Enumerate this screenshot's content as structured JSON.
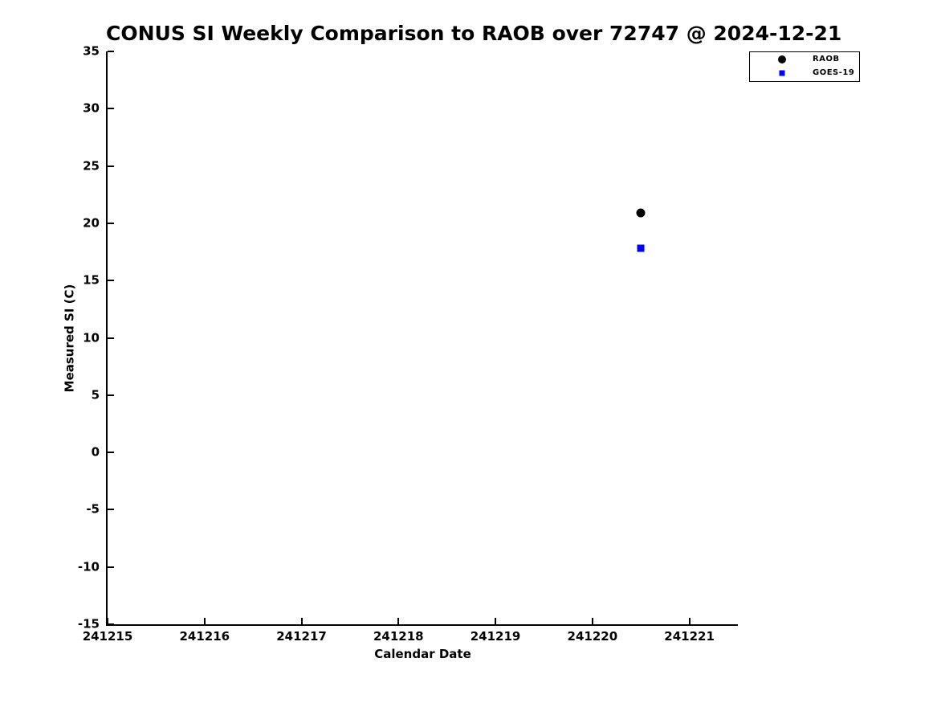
{
  "chart_data": {
    "type": "scatter",
    "title": "CONUS SI Weekly Comparison to RAOB over 72747 @ 2024-12-21",
    "xlabel": "Calendar Date",
    "ylabel": "Measured SI (C)",
    "xlim": [
      241215,
      241221.5
    ],
    "ylim": [
      -15,
      35
    ],
    "x_ticks": [
      241215,
      241216,
      241217,
      241218,
      241219,
      241220,
      241221
    ],
    "y_ticks": [
      35,
      30,
      25,
      20,
      15,
      10,
      5,
      0,
      -5,
      -10,
      -15
    ],
    "grid": false,
    "background_color": "#ffffff",
    "axis_color": "#000000",
    "legend_position": "top-right-outside",
    "series": [
      {
        "name": "RAOB",
        "marker": "circle",
        "color": "#000000",
        "points": [
          {
            "x": 241220.5,
            "y": 20.9
          }
        ]
      },
      {
        "name": "GOES-19",
        "marker": "square",
        "color": "#0000ff",
        "points": [
          {
            "x": 241220.5,
            "y": 17.8
          }
        ]
      }
    ]
  }
}
